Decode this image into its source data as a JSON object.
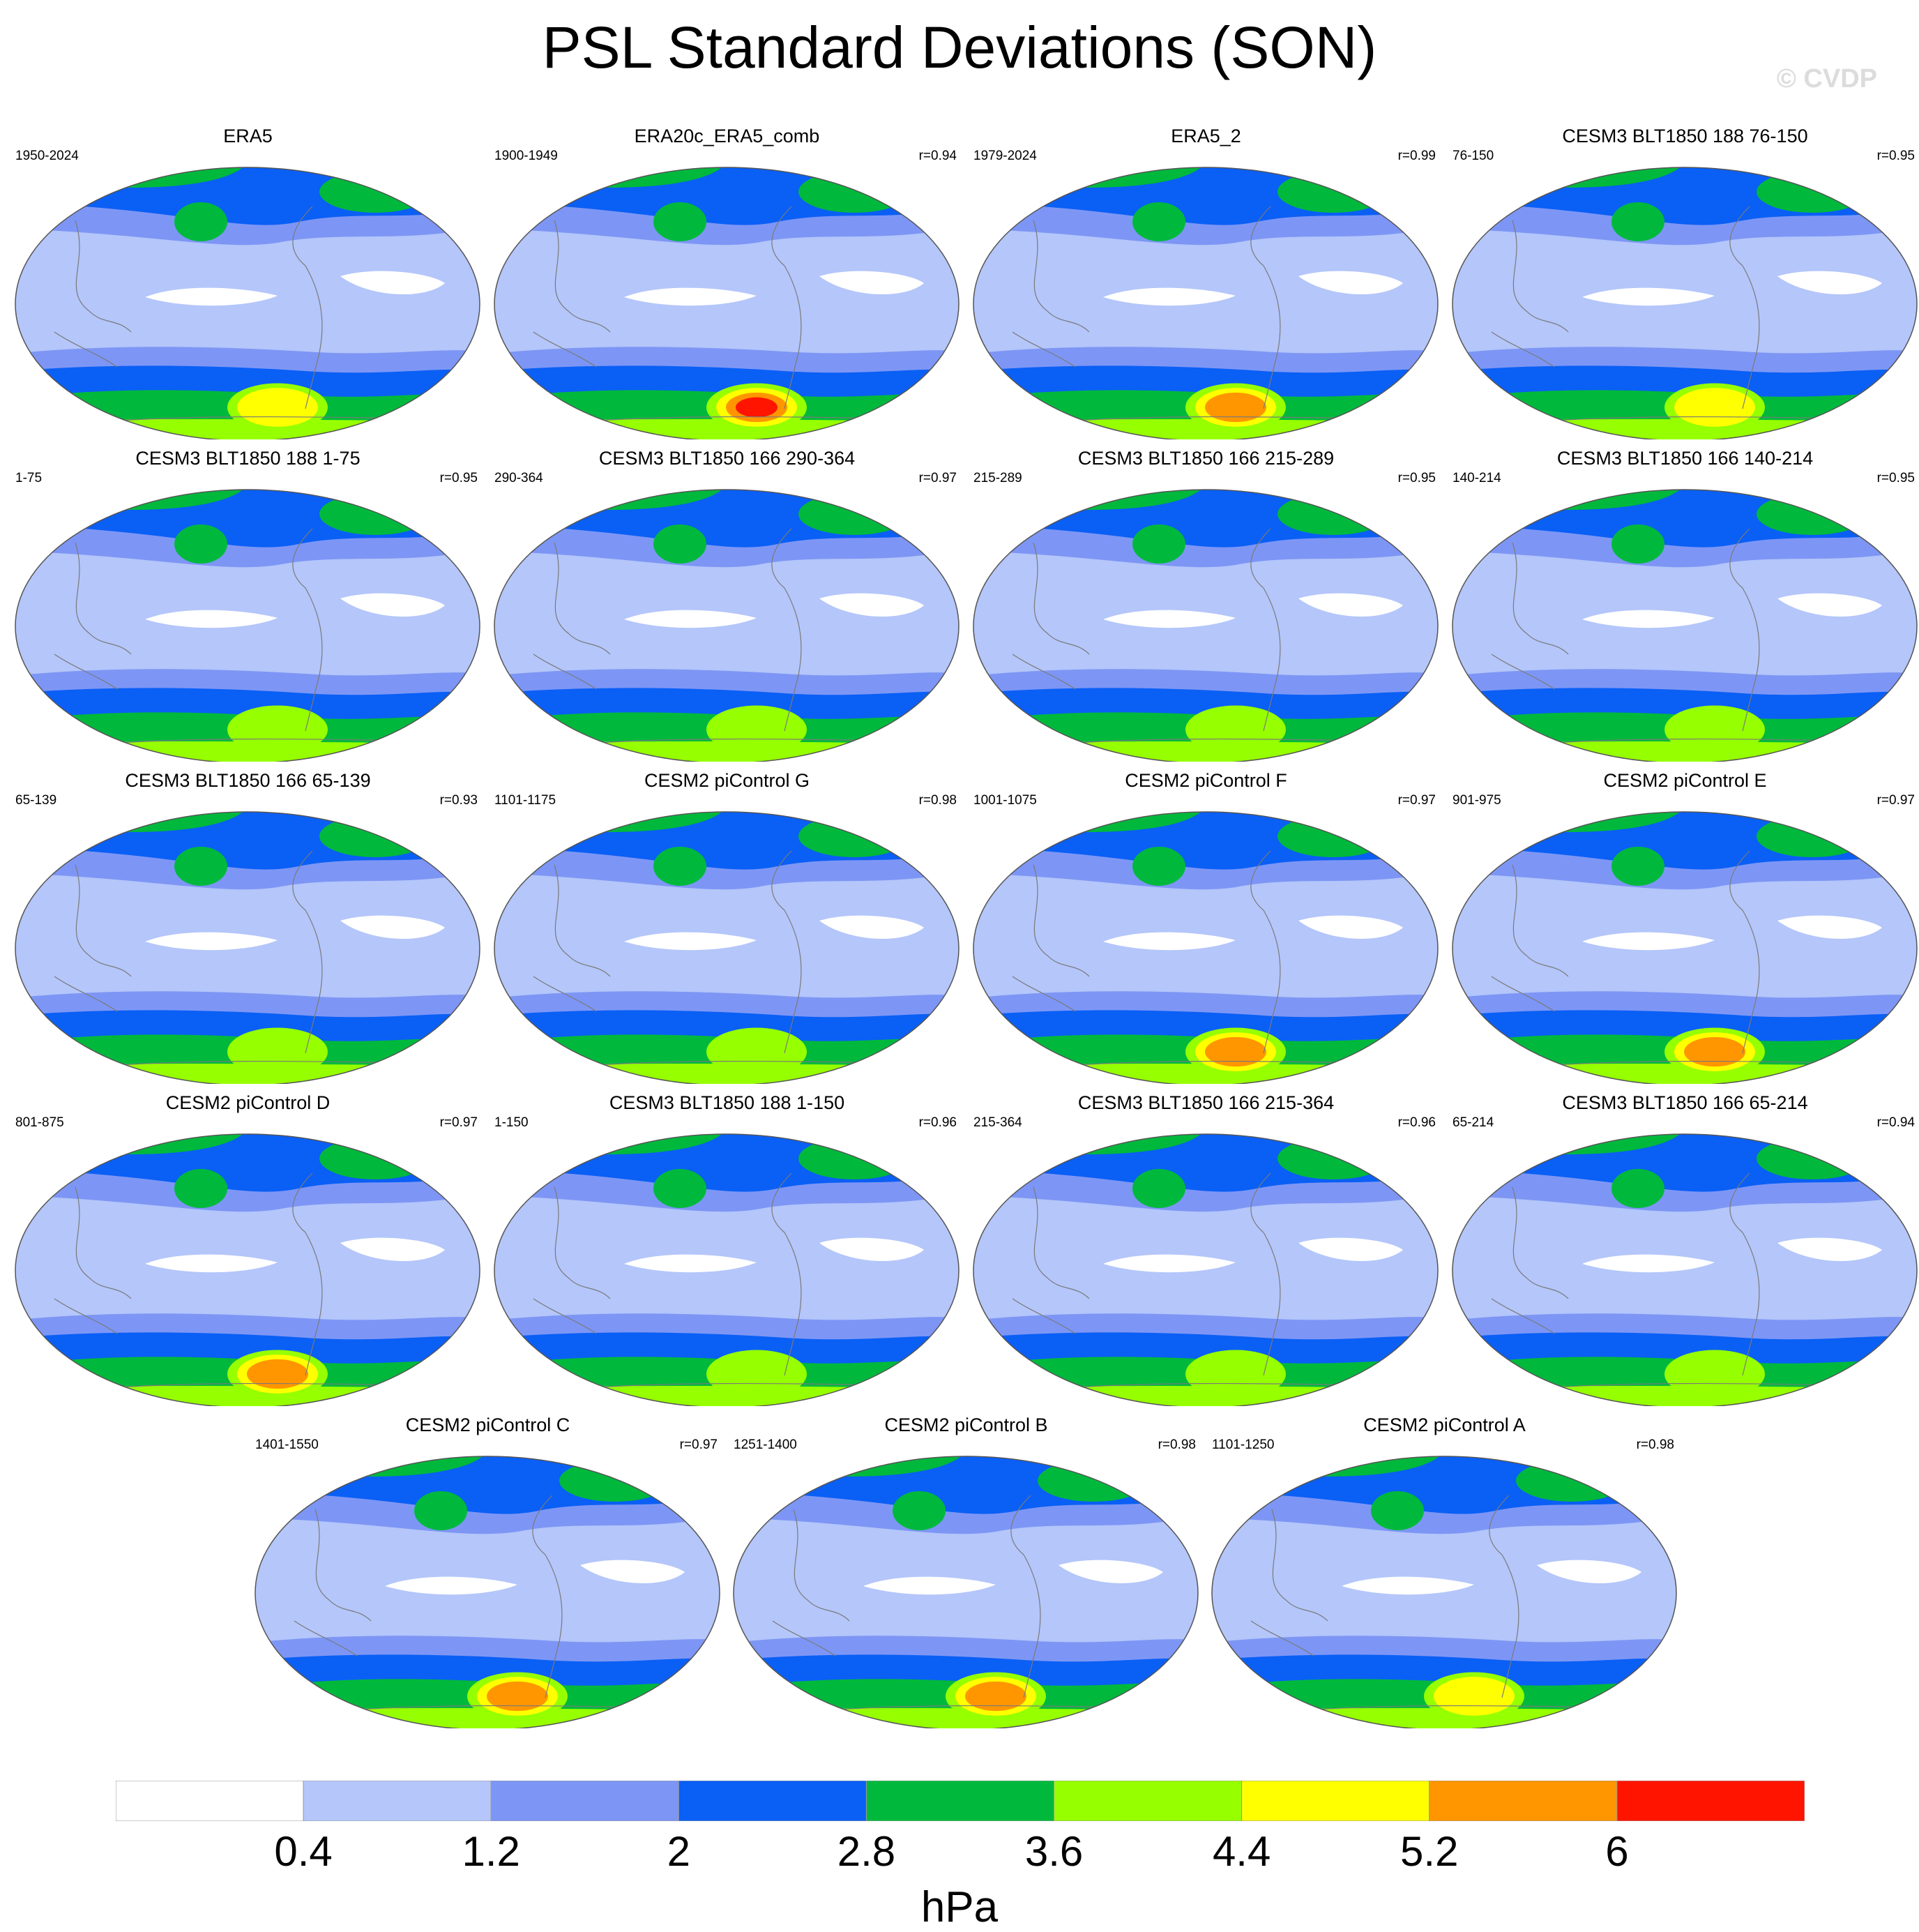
{
  "title": "PSL Standard Deviations (SON)",
  "watermark": "© CVDP",
  "chart_data": {
    "type": "map-grid",
    "title": "PSL Standard Deviations (SON)",
    "panels": [
      {
        "title": "ERA5",
        "years": "1950-2024",
        "r": ""
      },
      {
        "title": "ERA20c_ERA5_comb",
        "years": "1900-1949",
        "r": "r=0.94"
      },
      {
        "title": "ERA5_2",
        "years": "1979-2024",
        "r": "r=0.99"
      },
      {
        "title": "CESM3 BLT1850 188 76-150",
        "years": "76-150",
        "r": "r=0.95"
      },
      {
        "title": "CESM3 BLT1850 188 1-75",
        "years": "1-75",
        "r": "r=0.95"
      },
      {
        "title": "CESM3 BLT1850 166 290-364",
        "years": "290-364",
        "r": "r=0.97"
      },
      {
        "title": "CESM3 BLT1850 166 215-289",
        "years": "215-289",
        "r": "r=0.95"
      },
      {
        "title": "CESM3 BLT1850 166 140-214",
        "years": "140-214",
        "r": "r=0.95"
      },
      {
        "title": "CESM3 BLT1850 166 65-139",
        "years": "65-139",
        "r": "r=0.93"
      },
      {
        "title": "CESM2 piControl G",
        "years": "1101-1175",
        "r": "r=0.98"
      },
      {
        "title": "CESM2 piControl F",
        "years": "1001-1075",
        "r": "r=0.97"
      },
      {
        "title": "CESM2 piControl E",
        "years": "901-975",
        "r": "r=0.97"
      },
      {
        "title": "CESM2 piControl D",
        "years": "801-875",
        "r": "r=0.97"
      },
      {
        "title": "CESM3 BLT1850 188 1-150",
        "years": "1-150",
        "r": "r=0.96"
      },
      {
        "title": "CESM3 BLT1850 166 215-364",
        "years": "215-364",
        "r": "r=0.96"
      },
      {
        "title": "CESM3 BLT1850 166 65-214",
        "years": "65-214",
        "r": "r=0.94"
      },
      {
        "title": "CESM2 piControl C",
        "years": "1401-1550",
        "r": "r=0.97"
      },
      {
        "title": "CESM2 piControl B",
        "years": "1251-1400",
        "r": "r=0.98"
      },
      {
        "title": "CESM2 piControl A",
        "years": "1101-1250",
        "r": "r=0.98"
      }
    ],
    "colorbar": {
      "levels": [
        "0.4",
        "1.2",
        "2",
        "2.8",
        "3.6",
        "4.4",
        "5.2",
        "6"
      ],
      "colors": [
        "#ffffff",
        "#b4c6fa",
        "#7d96f5",
        "#0a5ff5",
        "#00b93c",
        "#96ff00",
        "#ffff00",
        "#ff9600",
        "#ff1400"
      ],
      "units": "hPa"
    },
    "southern_max_color": [
      "#ffff00",
      "#ff1400",
      "#ff9600",
      "#ffff00",
      "#96ff00",
      "#96ff00",
      "#96ff00",
      "#96ff00",
      "#96ff00",
      "#96ff00",
      "#ff9600",
      "#ff9600",
      "#ff9600",
      "#96ff00",
      "#96ff00",
      "#96ff00",
      "#ff9600",
      "#ff9600",
      "#ffff00"
    ]
  }
}
